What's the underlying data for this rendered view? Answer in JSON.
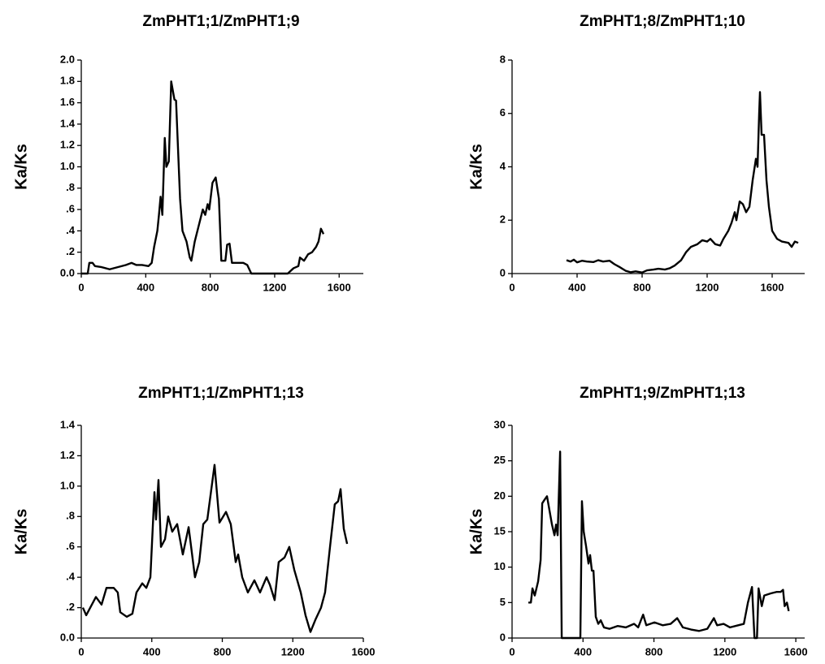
{
  "chart_data": [
    {
      "type": "line",
      "title": "ZmPHT1;1/ZmPHT1;9",
      "y_label": "Ka/Ks",
      "color": "#000000",
      "x": [
        0,
        40,
        50,
        70,
        85,
        126,
        176,
        226,
        276,
        312,
        342,
        377,
        417,
        437,
        452,
        472,
        482,
        492,
        503,
        518,
        528,
        543,
        558,
        578,
        588,
        613,
        628,
        653,
        673,
        683,
        704,
        729,
        754,
        769,
        784,
        794,
        814,
        834,
        854,
        869,
        894,
        905,
        920,
        935,
        1005,
        1030,
        1055,
        1281,
        1317,
        1347,
        1357,
        1382,
        1407,
        1432,
        1457,
        1472,
        1487,
        1503
      ],
      "values": [
        0,
        0,
        0.1,
        0.1,
        0.07,
        0.06,
        0.04,
        0.06,
        0.08,
        0.1,
        0.08,
        0.08,
        0.07,
        0.1,
        0.25,
        0.4,
        0.55,
        0.72,
        0.55,
        1.27,
        1.0,
        1.05,
        1.8,
        1.63,
        1.62,
        0.7,
        0.4,
        0.3,
        0.15,
        0.12,
        0.3,
        0.45,
        0.6,
        0.55,
        0.65,
        0.6,
        0.85,
        0.9,
        0.7,
        0.12,
        0.12,
        0.27,
        0.28,
        0.1,
        0.1,
        0.08,
        0,
        0,
        0.05,
        0.07,
        0.15,
        0.12,
        0.18,
        0.2,
        0.25,
        0.3,
        0.42,
        0.37
      ],
      "xlim": [
        0,
        1750
      ],
      "xticks": [
        0,
        400,
        800,
        1200,
        1600
      ],
      "ylim": [
        0,
        2
      ],
      "yticks": [
        {
          "value": 0,
          "label": "0.0"
        },
        {
          "value": 0.2,
          "label": ".2"
        },
        {
          "value": 0.4,
          "label": ".4"
        },
        {
          "value": 0.6,
          "label": ".6"
        },
        {
          "value": 0.8,
          "label": ".8"
        },
        {
          "value": 1,
          "label": "1.0"
        },
        1.2,
        1.4,
        1.6,
        1.8,
        {
          "value": 2,
          "label": "2.0"
        }
      ]
    },
    {
      "type": "line",
      "title": "ZmPHT1;8/ZmPHT1;10",
      "y_label": "Ka/Ks",
      "color": "#000000",
      "x": [
        335,
        360,
        380,
        400,
        430,
        460,
        500,
        530,
        560,
        600,
        630,
        660,
        700,
        730,
        760,
        800,
        830,
        870,
        900,
        940,
        970,
        1000,
        1040,
        1070,
        1100,
        1140,
        1170,
        1200,
        1220,
        1250,
        1280,
        1300,
        1330,
        1350,
        1370,
        1380,
        1400,
        1420,
        1440,
        1460,
        1480,
        1500,
        1510,
        1520,
        1525,
        1535,
        1550,
        1565,
        1580,
        1600,
        1630,
        1660,
        1700,
        1720,
        1740,
        1760
      ],
      "values": [
        0.5,
        0.45,
        0.52,
        0.42,
        0.48,
        0.45,
        0.43,
        0.5,
        0.45,
        0.48,
        0.35,
        0.25,
        0.1,
        0.05,
        0.08,
        0.04,
        0.12,
        0.15,
        0.18,
        0.15,
        0.2,
        0.3,
        0.5,
        0.8,
        1.0,
        1.1,
        1.25,
        1.2,
        1.3,
        1.1,
        1.05,
        1.3,
        1.6,
        1.9,
        2.3,
        2.0,
        2.7,
        2.6,
        2.3,
        2.5,
        3.5,
        4.3,
        4.0,
        6.0,
        6.8,
        5.2,
        5.2,
        3.5,
        2.5,
        1.6,
        1.3,
        1.2,
        1.15,
        1.0,
        1.2,
        1.15
      ],
      "xlim": [
        0,
        1800
      ],
      "xticks": [
        0,
        400,
        800,
        1200,
        1600
      ],
      "ylim": [
        0,
        8
      ],
      "yticks": [
        0,
        2,
        4,
        6,
        8
      ]
    },
    {
      "type": "line",
      "title": "ZmPHT1;1/ZmPHT1;13",
      "y_label": "Ka/Ks",
      "color": "#000000",
      "x": [
        9,
        28,
        83,
        115,
        143,
        184,
        207,
        221,
        258,
        290,
        313,
        346,
        369,
        392,
        415,
        424,
        438,
        452,
        475,
        493,
        516,
        544,
        576,
        609,
        645,
        669,
        692,
        715,
        756,
        784,
        821,
        848,
        876,
        890,
        913,
        945,
        982,
        1014,
        1051,
        1070,
        1097,
        1120,
        1153,
        1180,
        1208,
        1245,
        1272,
        1300,
        1328,
        1360,
        1383,
        1411,
        1438,
        1457,
        1471,
        1489,
        1508
      ],
      "values": [
        0.2,
        0.15,
        0.27,
        0.22,
        0.33,
        0.33,
        0.3,
        0.17,
        0.14,
        0.16,
        0.3,
        0.36,
        0.33,
        0.4,
        0.96,
        0.78,
        1.04,
        0.6,
        0.65,
        0.8,
        0.7,
        0.75,
        0.55,
        0.73,
        0.4,
        0.5,
        0.75,
        0.78,
        1.14,
        0.76,
        0.83,
        0.75,
        0.5,
        0.55,
        0.4,
        0.3,
        0.38,
        0.3,
        0.4,
        0.35,
        0.25,
        0.5,
        0.53,
        0.6,
        0.45,
        0.3,
        0.15,
        0.04,
        0.12,
        0.2,
        0.3,
        0.6,
        0.88,
        0.9,
        0.98,
        0.72,
        0.62
      ],
      "xlim": [
        0,
        1600
      ],
      "xticks": [
        0,
        400,
        800,
        1200,
        1600
      ],
      "ylim": [
        0,
        1.4
      ],
      "yticks": [
        {
          "value": 0,
          "label": "0.0"
        },
        {
          "value": 0.2,
          "label": ".2"
        },
        {
          "value": 0.4,
          "label": ".4"
        },
        {
          "value": 0.6,
          "label": ".6"
        },
        {
          "value": 0.8,
          "label": ".8"
        },
        {
          "value": 1,
          "label": "1.0"
        },
        1.2,
        1.4
      ]
    },
    {
      "type": "line",
      "title": "ZmPHT1;9/ZmPHT1;13",
      "y_label": "Ka/Ks",
      "color": "#000000",
      "x": [
        92,
        106,
        115,
        128,
        147,
        161,
        170,
        183,
        197,
        211,
        225,
        239,
        248,
        257,
        271,
        280,
        385,
        394,
        404,
        417,
        431,
        440,
        450,
        459,
        472,
        486,
        500,
        518,
        550,
        596,
        642,
        688,
        711,
        739,
        757,
        803,
        849,
        894,
        931,
        963,
        1009,
        1055,
        1101,
        1138,
        1156,
        1193,
        1229,
        1275,
        1307,
        1330,
        1353,
        1367,
        1381,
        1390,
        1408,
        1422,
        1459,
        1491,
        1514,
        1528,
        1537,
        1550,
        1560
      ],
      "values": [
        5,
        5,
        7,
        6,
        8,
        11,
        19,
        19.5,
        20,
        18,
        16,
        14.5,
        16,
        14.5,
        26.3,
        0,
        0,
        19.3,
        15,
        13,
        10.5,
        11.7,
        9.5,
        9.5,
        3,
        2,
        2.5,
        1.5,
        1.3,
        1.7,
        1.5,
        2,
        1.5,
        3.3,
        1.8,
        2.2,
        1.8,
        2,
        2.8,
        1.5,
        1.2,
        1.0,
        1.3,
        2.8,
        1.8,
        2,
        1.5,
        1.8,
        2,
        5,
        7.2,
        0,
        0,
        7,
        4.5,
        6,
        6.3,
        6.5,
        6.5,
        6.8,
        4.5,
        5,
        3.8
      ],
      "xlim": [
        0,
        1650
      ],
      "xticks": [
        0,
        400,
        800,
        1200,
        1600
      ],
      "ylim": [
        0,
        30
      ],
      "yticks": [
        0,
        5,
        10,
        15,
        20,
        25,
        30
      ]
    }
  ]
}
